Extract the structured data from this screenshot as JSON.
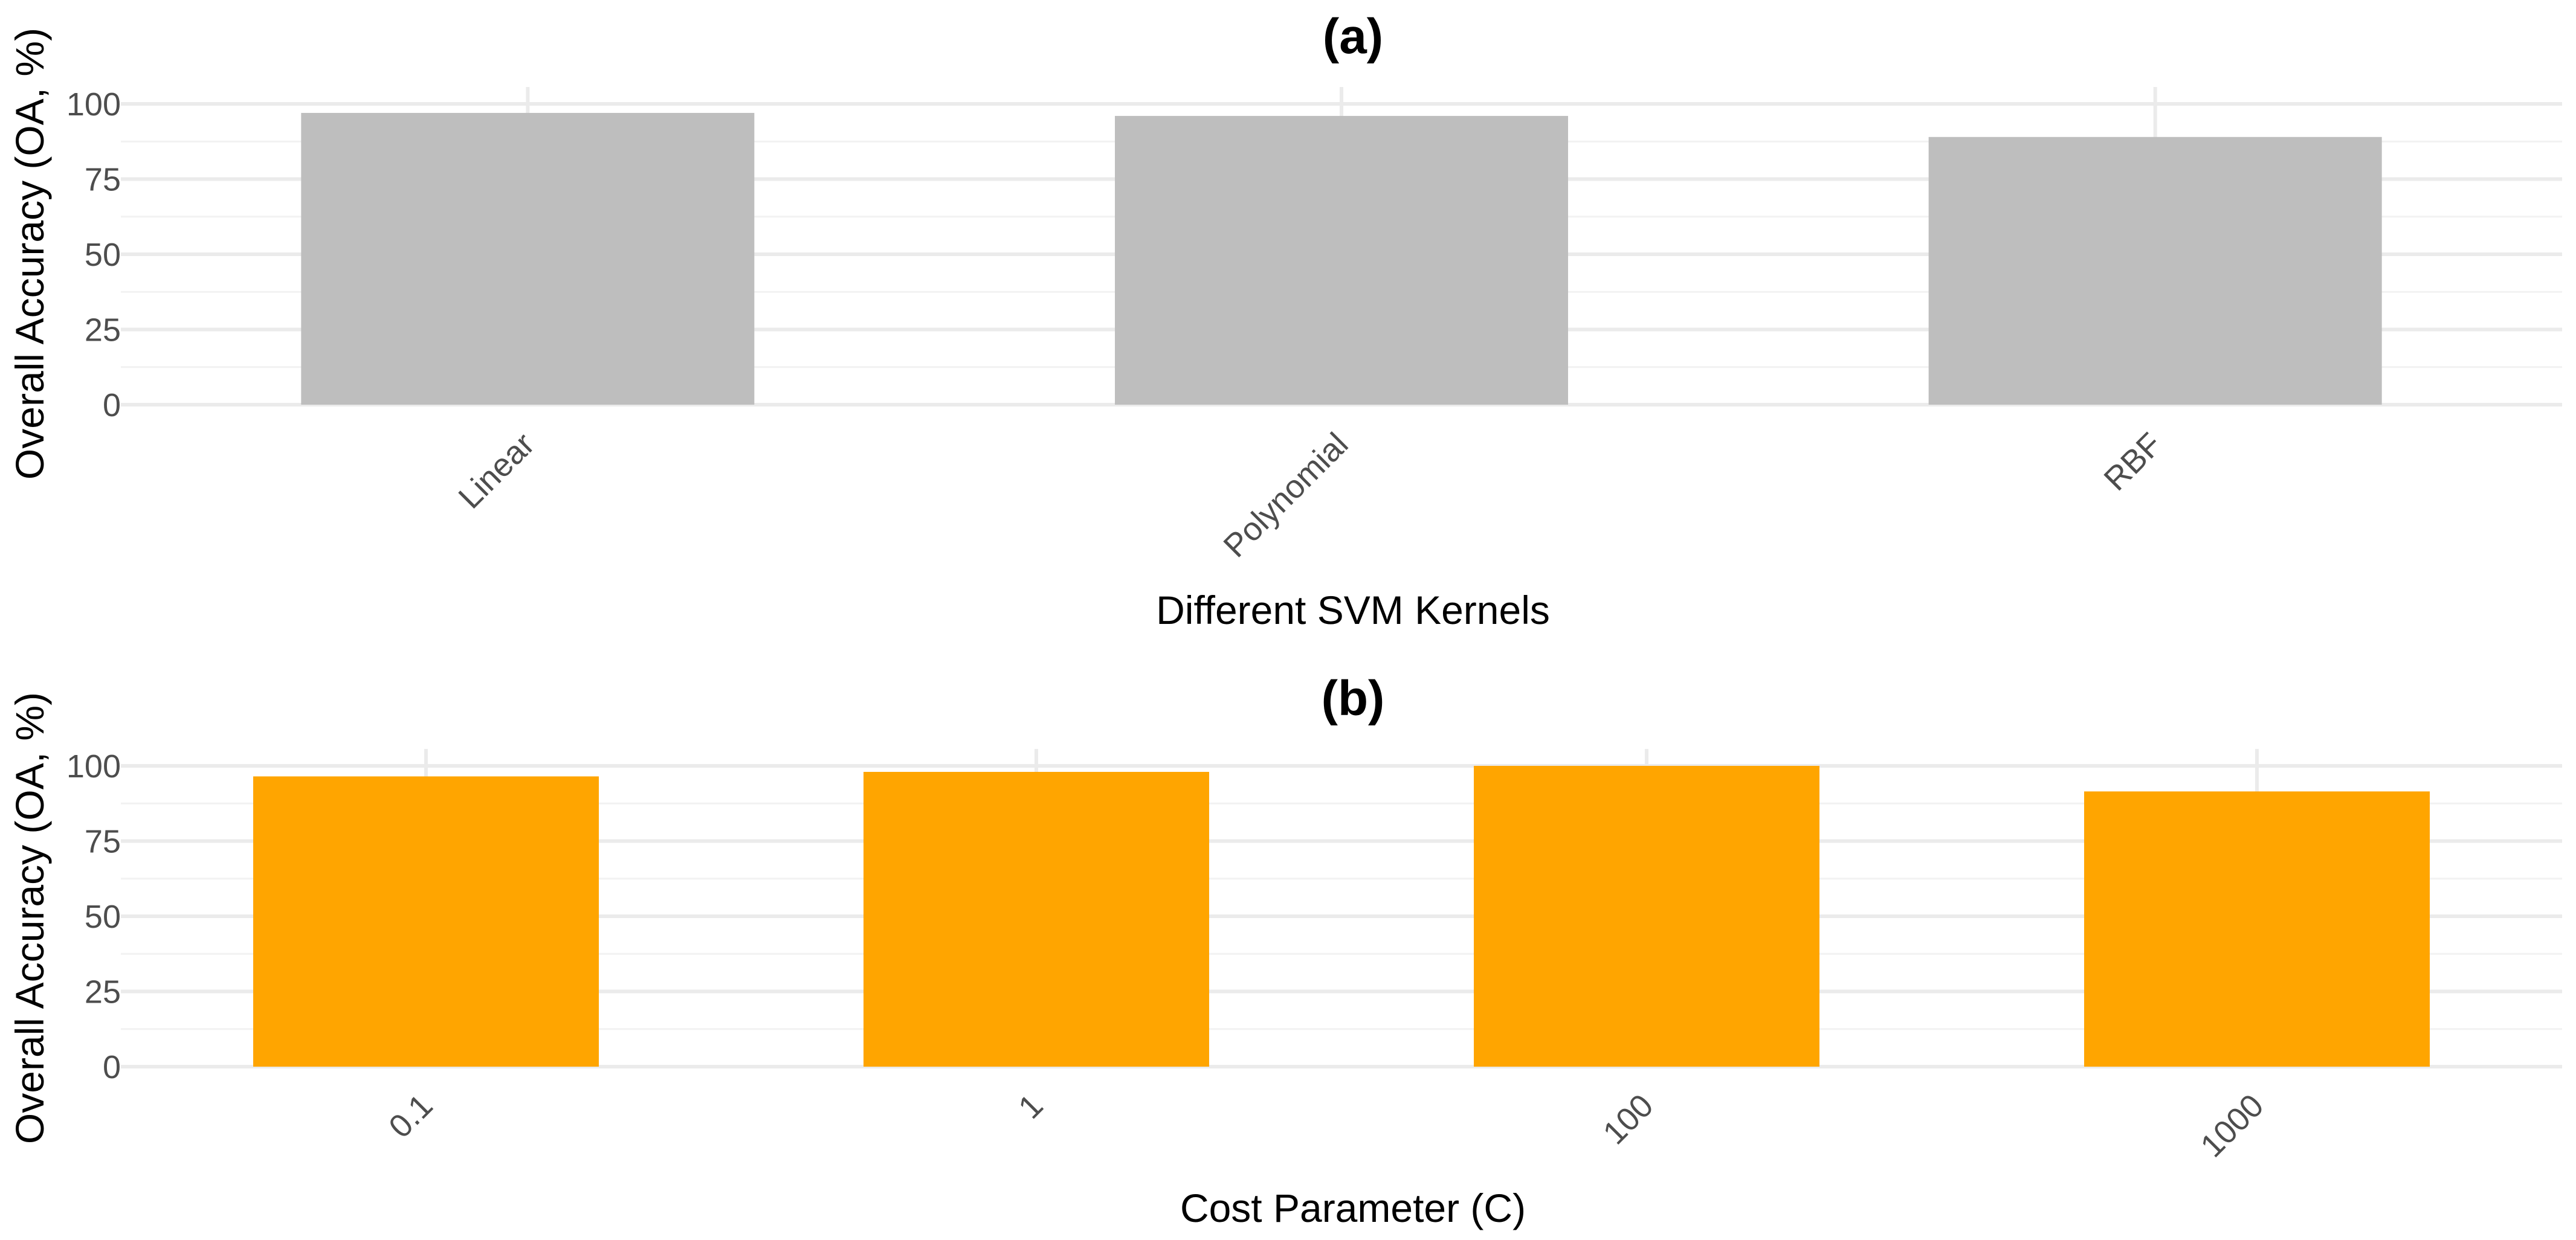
{
  "chart_data": [
    {
      "type": "bar",
      "title": "(a)",
      "xlabel": "Different SVM Kernels",
      "ylabel": "Overall Accuracy (OA, %)",
      "categories": [
        "Linear",
        "Polynomial",
        "RBF"
      ],
      "values": [
        97,
        96,
        89
      ],
      "ylim": [
        0,
        100
      ],
      "yticks": [
        0,
        25,
        50,
        75,
        100
      ],
      "bar_color": "#BEBEBE",
      "grid": true,
      "legend": "none"
    },
    {
      "type": "bar",
      "title": "(b)",
      "xlabel": "Cost Parameter (C)",
      "ylabel": "Overall Accuracy (OA, %)",
      "categories": [
        "0.1",
        "1",
        "100",
        "1000"
      ],
      "values": [
        96.5,
        98,
        100,
        91.5
      ],
      "ylim": [
        0,
        100
      ],
      "yticks": [
        0,
        25,
        50,
        75,
        100
      ],
      "bar_color": "#FFA500",
      "grid": true,
      "legend": "none"
    }
  ]
}
